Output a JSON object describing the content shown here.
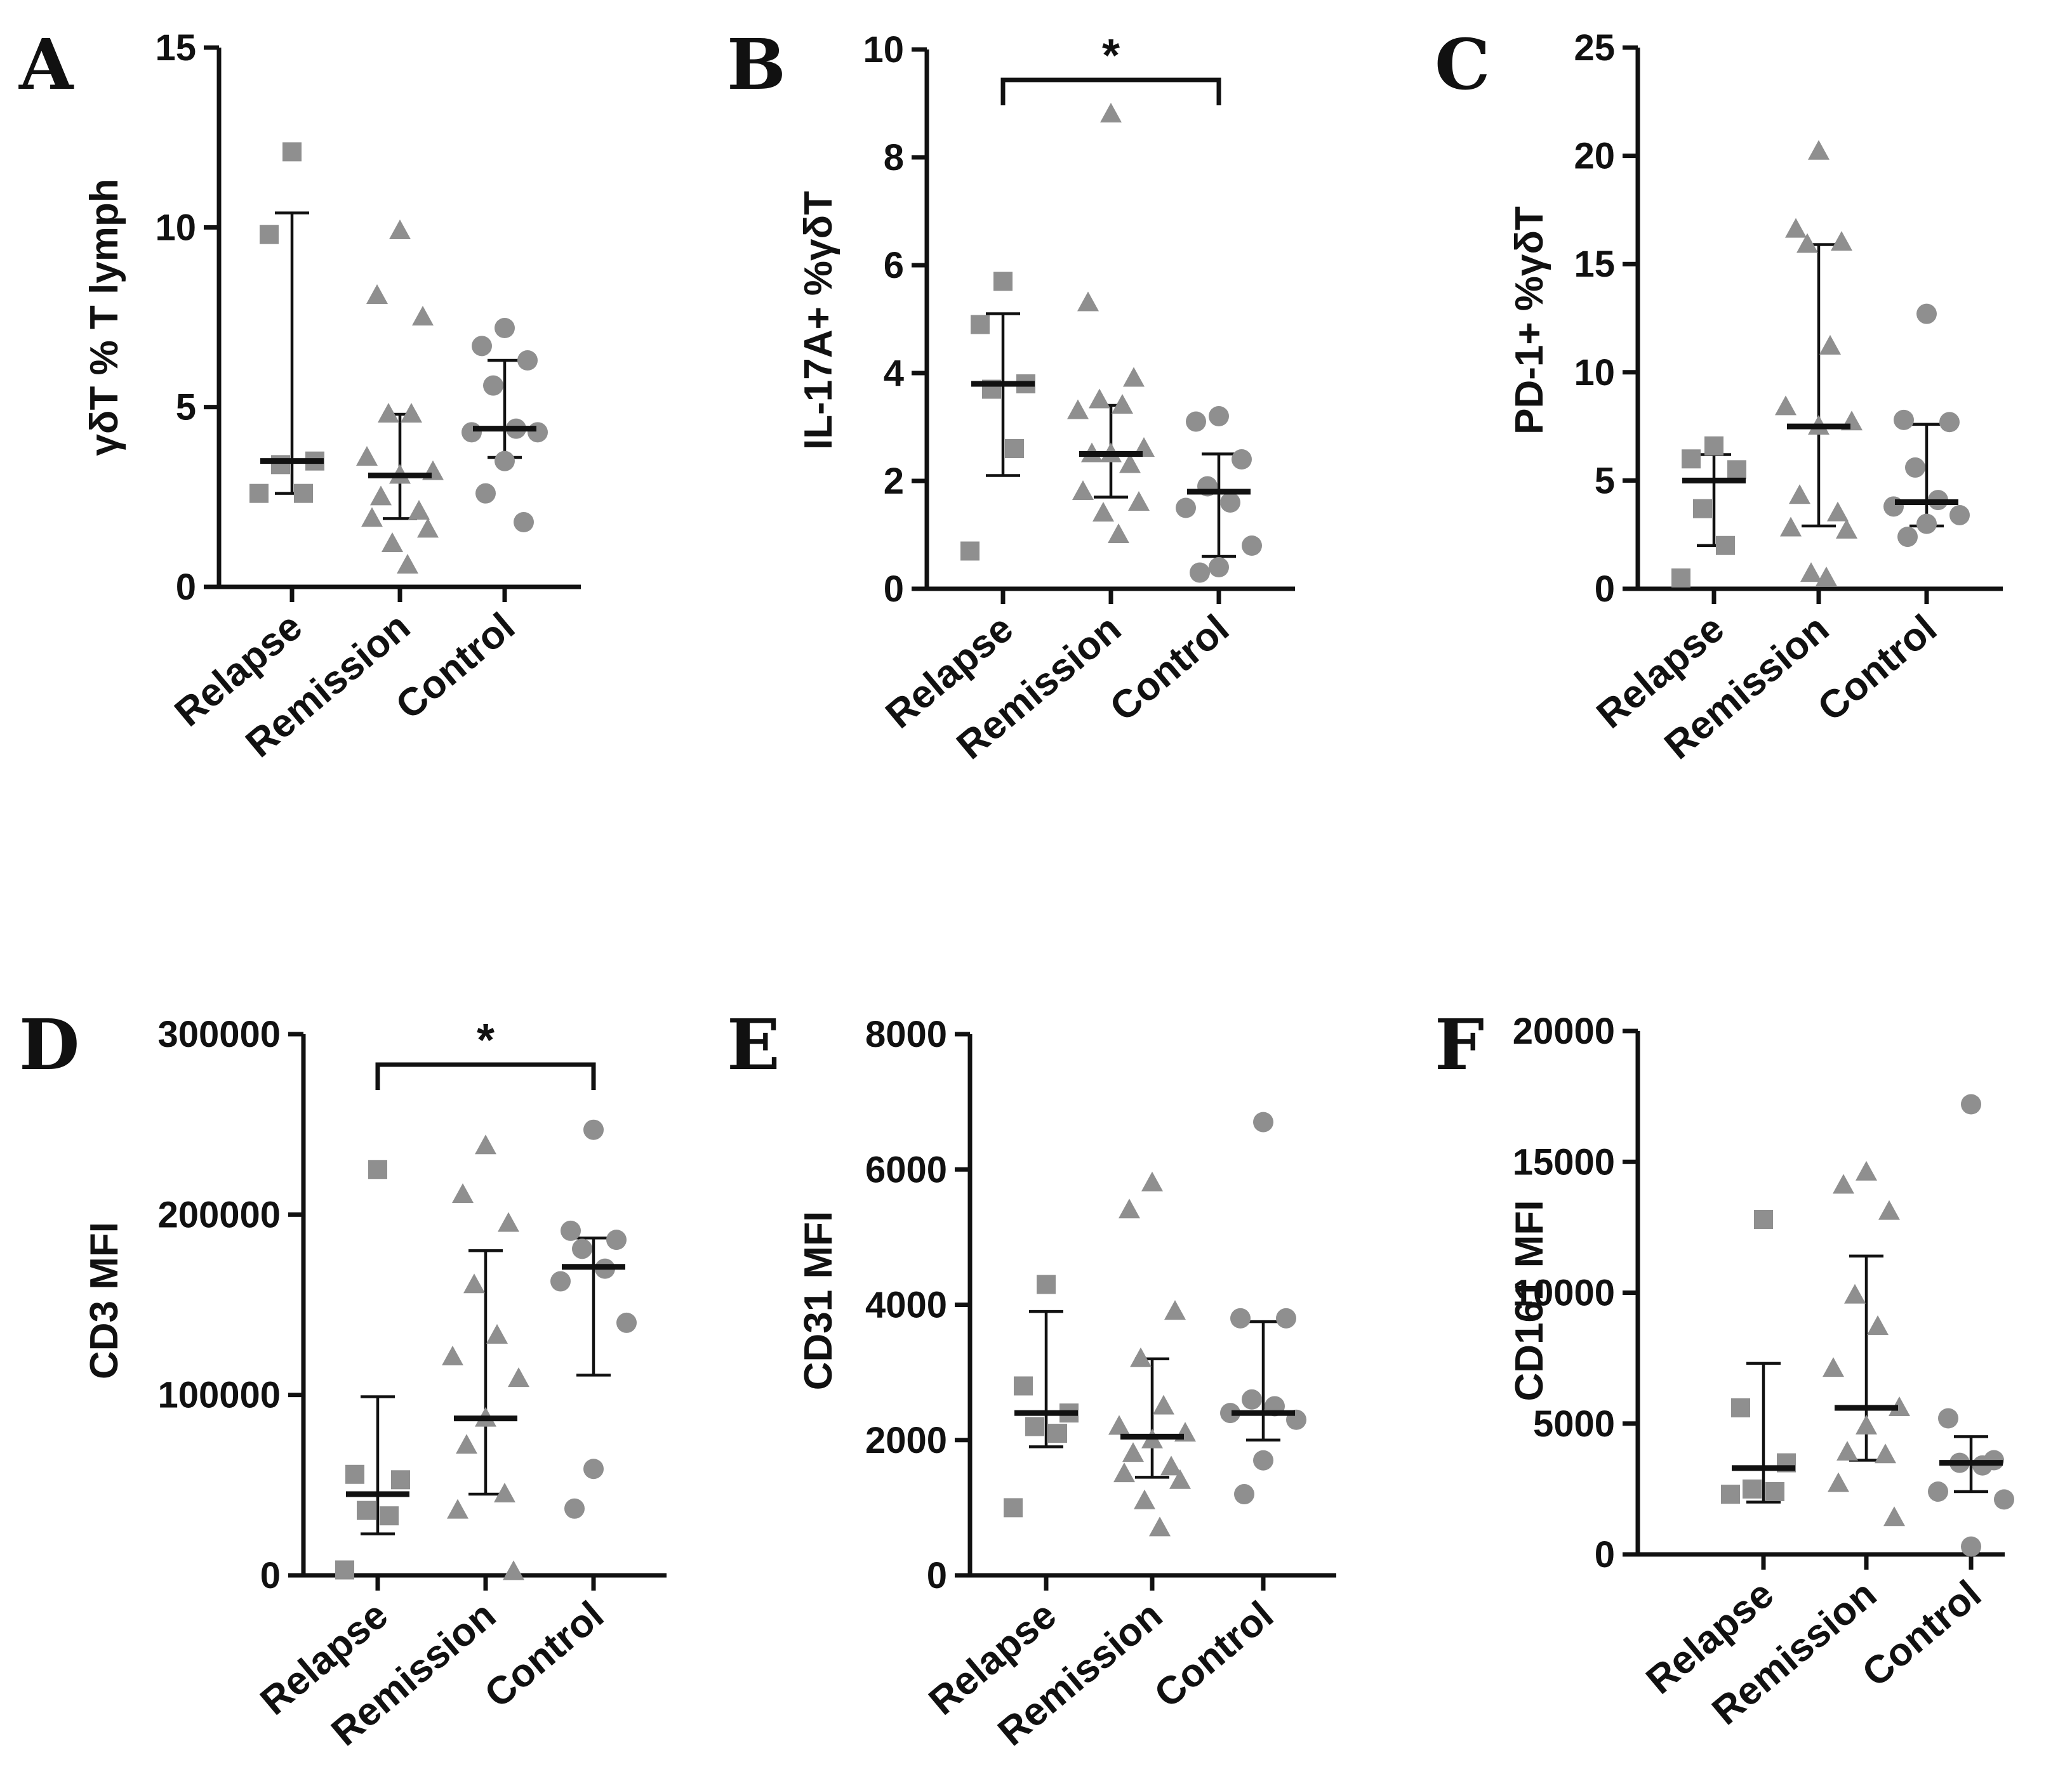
{
  "style": {
    "point_color": "#8f8f8f",
    "line_color": "#111111",
    "background": "#ffffff"
  },
  "chart_data": [
    {
      "panel": "A",
      "type": "scatter",
      "ylabel": "γδT % T lymph",
      "ylim": [
        0,
        15
      ],
      "yticks": [
        "0",
        "5",
        "10",
        "15"
      ],
      "categories": [
        "Relapse",
        "Remission",
        "Control"
      ],
      "series": [
        {
          "name": "Relapse",
          "marker": "square",
          "values": [
            12.1,
            9.8,
            3.5,
            3.4,
            2.6,
            2.6
          ],
          "median": 3.5,
          "err_low": 2.6,
          "err_high": 10.4
        },
        {
          "name": "Remission",
          "marker": "triangle",
          "values": [
            9.9,
            8.1,
            7.5,
            4.8,
            4.8,
            3.6,
            3.2,
            3.1,
            2.5,
            2.1,
            1.9,
            1.6,
            1.2,
            0.6
          ],
          "median": 3.1,
          "err_low": 1.9,
          "err_high": 4.8
        },
        {
          "name": "Control",
          "marker": "circle",
          "values": [
            7.2,
            6.7,
            6.3,
            5.6,
            4.4,
            4.3,
            4.3,
            3.5,
            2.6,
            1.8
          ],
          "median": 4.4,
          "err_low": 3.6,
          "err_high": 6.3
        }
      ]
    },
    {
      "panel": "B",
      "type": "scatter",
      "ylabel": "IL-17A+ %γδT",
      "ylim": [
        0,
        10
      ],
      "yticks": [
        "0",
        "2",
        "4",
        "6",
        "8",
        "10"
      ],
      "categories": [
        "Relapse",
        "Remission",
        "Control"
      ],
      "significance": {
        "from": "Relapse",
        "to": "Control",
        "label": "*"
      },
      "series": [
        {
          "name": "Relapse",
          "marker": "square",
          "values": [
            5.7,
            4.9,
            3.8,
            3.7,
            2.6,
            0.7
          ],
          "median": 3.8,
          "err_low": 2.1,
          "err_high": 5.1
        },
        {
          "name": "Remission",
          "marker": "triangle",
          "values": [
            8.8,
            5.3,
            3.9,
            3.5,
            3.4,
            3.3,
            2.6,
            2.5,
            2.5,
            2.3,
            1.8,
            1.6,
            1.4,
            1.0
          ],
          "median": 2.5,
          "err_low": 1.7,
          "err_high": 3.4
        },
        {
          "name": "Control",
          "marker": "circle",
          "values": [
            3.2,
            3.1,
            2.4,
            1.9,
            1.6,
            1.5,
            0.8,
            0.4,
            0.3
          ],
          "median": 1.8,
          "err_low": 0.6,
          "err_high": 2.5
        }
      ]
    },
    {
      "panel": "C",
      "type": "scatter",
      "ylabel": "PD-1+ %γδT",
      "ylim": [
        0,
        25
      ],
      "yticks": [
        "0",
        "5",
        "10",
        "15",
        "20",
        "25"
      ],
      "categories": [
        "Relapse",
        "Remission",
        "Control"
      ],
      "series": [
        {
          "name": "Relapse",
          "marker": "square",
          "values": [
            6.6,
            6.0,
            5.5,
            3.7,
            2.0,
            0.5
          ],
          "median": 5.0,
          "err_low": 2.0,
          "err_high": 6.2
        },
        {
          "name": "Remission",
          "marker": "triangle",
          "values": [
            20.2,
            16.6,
            16.0,
            15.9,
            11.2,
            8.4,
            7.7,
            7.5,
            4.3,
            3.5,
            2.8,
            2.7,
            0.7,
            0.5
          ],
          "median": 7.5,
          "err_low": 2.9,
          "err_high": 15.9
        },
        {
          "name": "Control",
          "marker": "circle",
          "values": [
            12.7,
            7.8,
            7.7,
            5.6,
            4.1,
            3.8,
            3.4,
            3.0,
            2.4
          ],
          "median": 4.0,
          "err_low": 2.9,
          "err_high": 7.6
        }
      ]
    },
    {
      "panel": "D",
      "type": "scatter",
      "ylabel": "CD3  MFI",
      "ylim": [
        0,
        300000
      ],
      "yticks": [
        "0",
        "100000",
        "200000",
        "300000"
      ],
      "categories": [
        "Relapse",
        "Remission",
        "Control"
      ],
      "significance": {
        "from": "Relapse",
        "to": "Control",
        "label": "*"
      },
      "series": [
        {
          "name": "Relapse",
          "marker": "square",
          "values": [
            225000,
            56000,
            53000,
            36000,
            33000,
            3000
          ],
          "median": 45000,
          "err_low": 23000,
          "err_high": 99000
        },
        {
          "name": "Remission",
          "marker": "triangle",
          "values": [
            238000,
            211000,
            195000,
            161000,
            133000,
            121000,
            109000,
            87000,
            72000,
            45000,
            36000,
            2000
          ],
          "median": 87000,
          "err_low": 45000,
          "err_high": 180000
        },
        {
          "name": "Control",
          "marker": "circle",
          "values": [
            247000,
            191000,
            186000,
            181000,
            170000,
            163000,
            140000,
            59000,
            37000
          ],
          "median": 171000,
          "err_low": 111000,
          "err_high": 187000
        }
      ]
    },
    {
      "panel": "E",
      "type": "scatter",
      "ylabel": "CD31  MFI",
      "ylim": [
        0,
        8000
      ],
      "yticks": [
        "0",
        "2000",
        "4000",
        "6000",
        "8000"
      ],
      "categories": [
        "Relapse",
        "Remission",
        "Control"
      ],
      "series": [
        {
          "name": "Relapse",
          "marker": "square",
          "values": [
            4300,
            2800,
            2400,
            2200,
            2100,
            1000
          ],
          "median": 2400,
          "err_low": 1900,
          "err_high": 3900
        },
        {
          "name": "Remission",
          "marker": "triangle",
          "values": [
            5800,
            5400,
            3900,
            3200,
            2500,
            2200,
            2100,
            2000,
            1800,
            1600,
            1500,
            1400,
            1100,
            700
          ],
          "median": 2050,
          "err_low": 1450,
          "err_high": 3200
        },
        {
          "name": "Control",
          "marker": "circle",
          "values": [
            6700,
            3800,
            3800,
            2600,
            2500,
            2400,
            2300,
            1700,
            1200
          ],
          "median": 2400,
          "err_low": 2000,
          "err_high": 3750
        }
      ]
    },
    {
      "panel": "F",
      "type": "scatter",
      "ylabel": "CD161  MFI",
      "ylim": [
        0,
        20000
      ],
      "yticks": [
        "0",
        "5000",
        "10000",
        "15000",
        "20000"
      ],
      "categories": [
        "Relapse",
        "Remission",
        "Control"
      ],
      "series": [
        {
          "name": "Relapse",
          "marker": "square",
          "values": [
            12800,
            5600,
            3500,
            2500,
            2400,
            2300
          ],
          "median": 3300,
          "err_low": 2000,
          "err_high": 7300
        },
        {
          "name": "Remission",
          "marker": "triangle",
          "values": [
            14600,
            14100,
            13100,
            9900,
            8700,
            7100,
            5600,
            4900,
            3900,
            3800,
            2700,
            1400
          ],
          "median": 5600,
          "err_low": 3600,
          "err_high": 11400
        },
        {
          "name": "Control",
          "marker": "circle",
          "values": [
            17200,
            5200,
            3600,
            3500,
            3400,
            2400,
            2100,
            300
          ],
          "median": 3500,
          "err_low": 2400,
          "err_high": 4500
        }
      ]
    }
  ]
}
